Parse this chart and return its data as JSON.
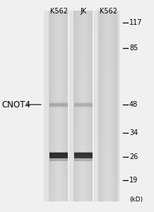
{
  "background_color": "#f0f0f0",
  "fig_width": 2.18,
  "fig_height": 3.0,
  "dpi": 100,
  "lane_labels": [
    "K562",
    "JK",
    "K562"
  ],
  "lane_label_fontsize": 7.0,
  "protein_label": "CNOT4",
  "protein_label_fontsize": 8.5,
  "mw_markers": [
    "117",
    "85",
    "48",
    "34",
    "26",
    "19"
  ],
  "mw_marker_fontsize": 7.0,
  "kd_label": "(kD)",
  "kd_label_fontsize": 6.5,
  "gel_bg": "#e2e2e2",
  "lane_bg": "#d4d4d4",
  "lane2_bg": "#cccccc",
  "lane3_bg": "#dcdcdc",
  "band_strong_color": "#222222",
  "band_weak_color": "#888888",
  "lane_sep_color": "#f0f0f0"
}
